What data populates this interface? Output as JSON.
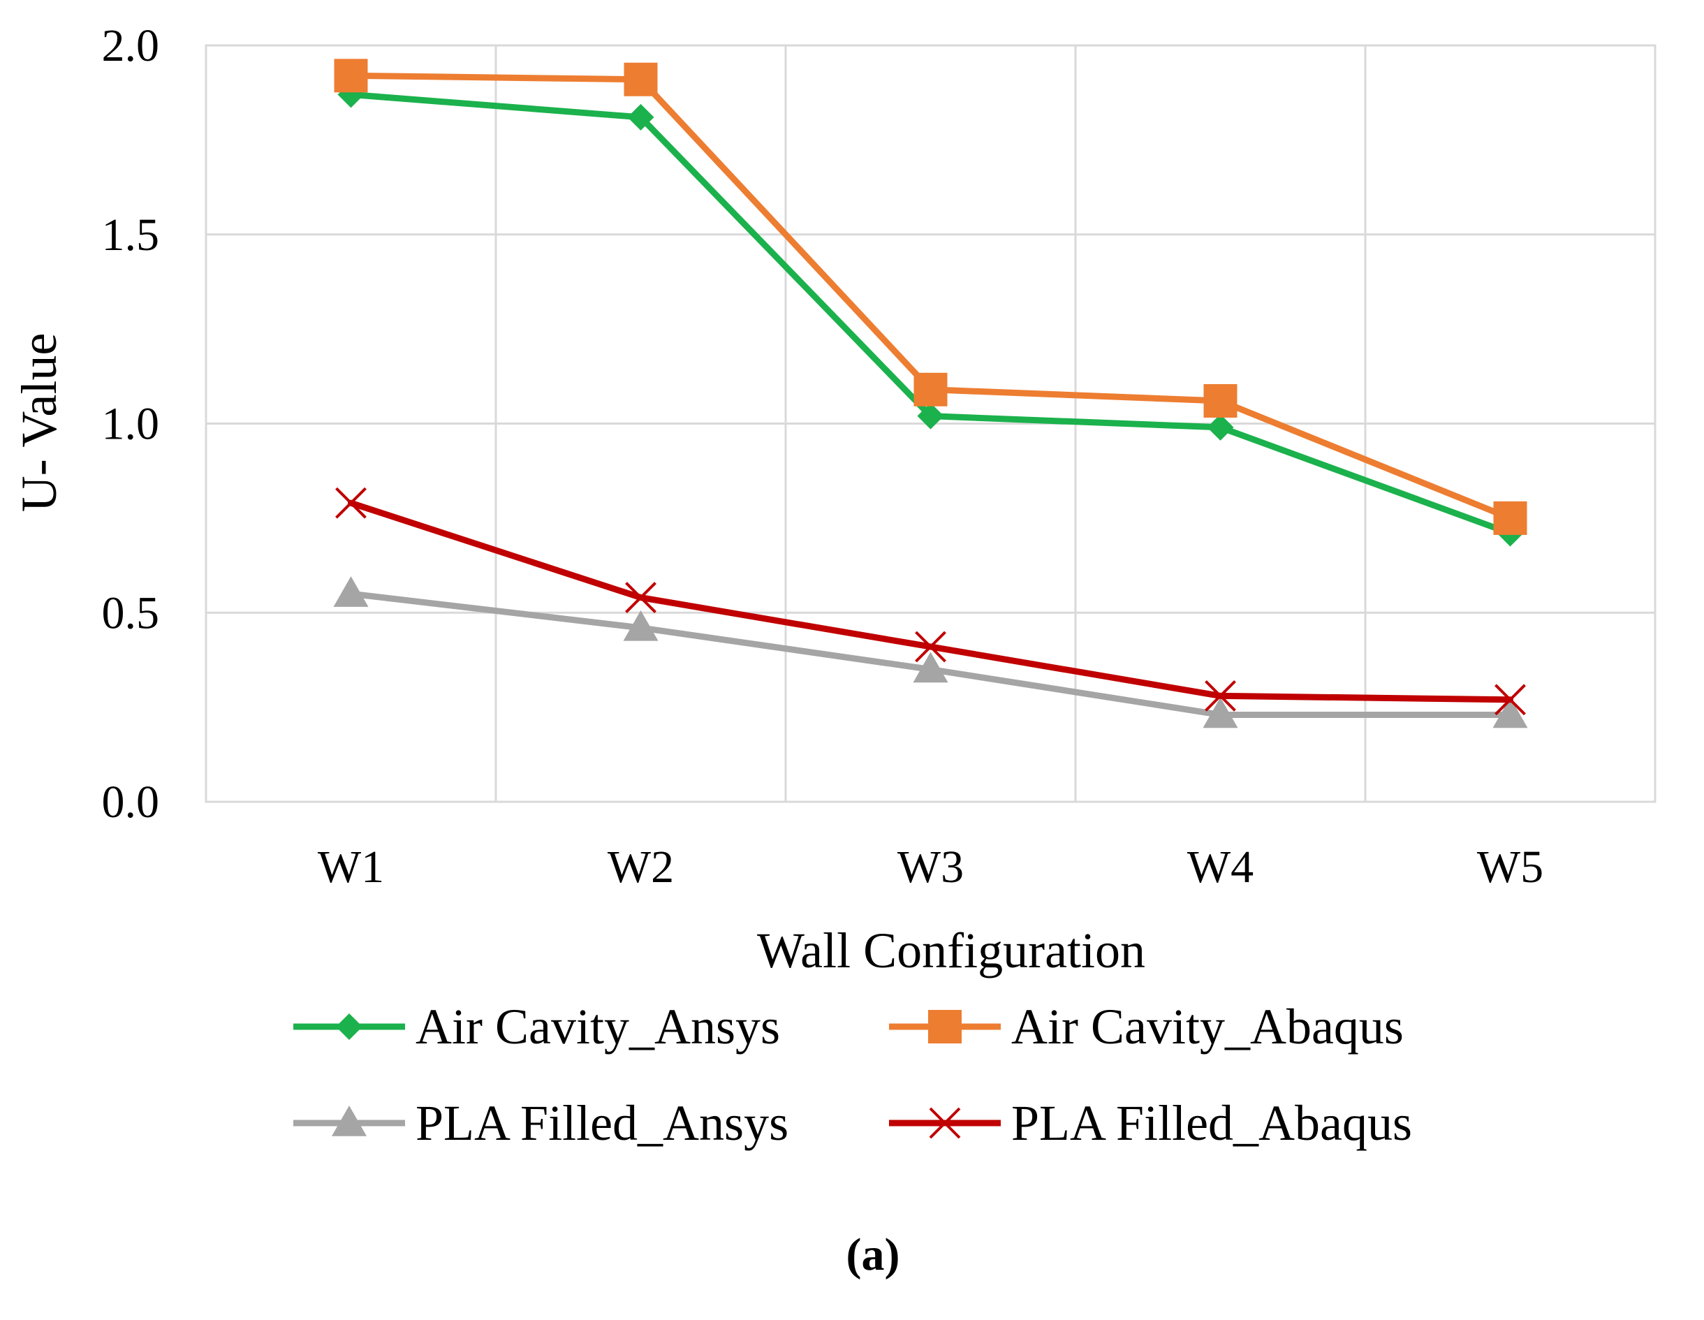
{
  "chart_data": {
    "type": "line",
    "title": "",
    "xlabel": "Wall Configuration",
    "ylabel": "U- Value",
    "categories": [
      "W1",
      "W2",
      "W3",
      "W4",
      "W5"
    ],
    "ylim": [
      0,
      2.0
    ],
    "yticks": [
      "0.0",
      "0.5",
      "1.0",
      "1.5",
      "2.0"
    ],
    "grid": true,
    "legend_position": "bottom",
    "series": [
      {
        "name": "Air Cavity_Ansys",
        "values": [
          1.87,
          1.81,
          1.02,
          0.99,
          0.71
        ],
        "color": "#1bb14c",
        "marker": "diamond"
      },
      {
        "name": "Air Cavity_Abaqus",
        "values": [
          1.92,
          1.91,
          1.09,
          1.06,
          0.75
        ],
        "color": "#ed7d31",
        "marker": "square"
      },
      {
        "name": "PLA Filled_Ansys",
        "values": [
          0.55,
          0.46,
          0.35,
          0.23,
          0.23
        ],
        "color": "#a5a5a5",
        "marker": "triangle"
      },
      {
        "name": "PLA Filled_Abaqus",
        "values": [
          0.79,
          0.54,
          0.41,
          0.28,
          0.27
        ],
        "color": "#c00000",
        "marker": "x"
      }
    ],
    "caption": "(a)"
  }
}
